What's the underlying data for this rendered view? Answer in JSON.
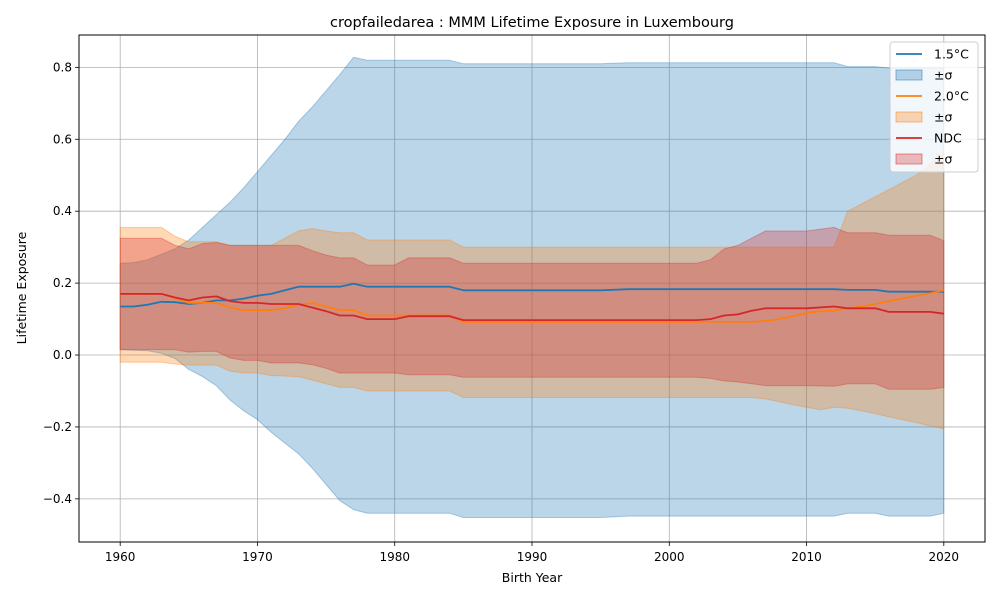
{
  "chart_data": {
    "type": "line",
    "title": "cropfailedarea : MMM Lifetime Exposure in Luxembourg",
    "xlabel": "Birth Year",
    "ylabel": "Lifetime Exposure",
    "xlim": [
      1957,
      2023
    ],
    "ylim": [
      -0.52,
      0.89
    ],
    "xticks": [
      1960,
      1970,
      1980,
      1990,
      2000,
      2010,
      2020
    ],
    "yticks": [
      -0.4,
      -0.2,
      0.0,
      0.2,
      0.4,
      0.6,
      0.8
    ],
    "xtick_labels": [
      "1960",
      "1970",
      "1980",
      "1990",
      "2000",
      "2010",
      "2020"
    ],
    "ytick_labels": [
      "−0.4",
      "−0.2",
      "0.0",
      "0.2",
      "0.4",
      "0.6",
      "0.8"
    ],
    "grid": true,
    "legend_position": "top-right",
    "series": [
      {
        "name": "1.5°C",
        "band_label": "±σ",
        "color": "#1f77b4",
        "band_color": "#1f77b4",
        "band_opacity": 0.3,
        "points": [
          [
            1960,
            0.135
          ],
          [
            1961,
            0.135
          ],
          [
            1962,
            0.14
          ],
          [
            1963,
            0.148
          ],
          [
            1964,
            0.147
          ],
          [
            1965,
            0.142
          ],
          [
            1966,
            0.145
          ],
          [
            1967,
            0.152
          ],
          [
            1968,
            0.152
          ],
          [
            1969,
            0.157
          ],
          [
            1970,
            0.165
          ],
          [
            1971,
            0.17
          ],
          [
            1972,
            0.18
          ],
          [
            1973,
            0.19
          ],
          [
            1976,
            0.19
          ],
          [
            1977,
            0.198
          ],
          [
            1978,
            0.19
          ],
          [
            1984,
            0.19
          ],
          [
            1985,
            0.18
          ],
          [
            1995,
            0.18
          ],
          [
            1997,
            0.183
          ],
          [
            2012,
            0.183
          ],
          [
            2013,
            0.181
          ],
          [
            2015,
            0.181
          ],
          [
            2016,
            0.176
          ],
          [
            2020,
            0.176
          ]
        ],
        "upper": [
          [
            1960,
            0.255
          ],
          [
            1961,
            0.257
          ],
          [
            1962,
            0.265
          ],
          [
            1963,
            0.28
          ],
          [
            1964,
            0.295
          ],
          [
            1965,
            0.32
          ],
          [
            1966,
            0.355
          ],
          [
            1967,
            0.39
          ],
          [
            1968,
            0.425
          ],
          [
            1969,
            0.465
          ],
          [
            1970,
            0.51
          ],
          [
            1971,
            0.555
          ],
          [
            1972,
            0.6
          ],
          [
            1973,
            0.65
          ],
          [
            1974,
            0.69
          ],
          [
            1975,
            0.735
          ],
          [
            1976,
            0.78
          ],
          [
            1977,
            0.828
          ],
          [
            1978,
            0.82
          ],
          [
            1984,
            0.82
          ],
          [
            1985,
            0.81
          ],
          [
            1995,
            0.81
          ],
          [
            1997,
            0.813
          ],
          [
            2012,
            0.813
          ],
          [
            2013,
            0.802
          ],
          [
            2015,
            0.802
          ],
          [
            2016,
            0.798
          ],
          [
            2020,
            0.798
          ]
        ],
        "lower": [
          [
            1960,
            0.015
          ],
          [
            1961,
            0.013
          ],
          [
            1962,
            0.012
          ],
          [
            1963,
            0.005
          ],
          [
            1964,
            -0.01
          ],
          [
            1965,
            -0.04
          ],
          [
            1966,
            -0.06
          ],
          [
            1967,
            -0.085
          ],
          [
            1968,
            -0.125
          ],
          [
            1969,
            -0.155
          ],
          [
            1970,
            -0.18
          ],
          [
            1971,
            -0.215
          ],
          [
            1972,
            -0.245
          ],
          [
            1973,
            -0.275
          ],
          [
            1974,
            -0.315
          ],
          [
            1975,
            -0.36
          ],
          [
            1976,
            -0.405
          ],
          [
            1977,
            -0.43
          ],
          [
            1978,
            -0.44
          ],
          [
            1984,
            -0.44
          ],
          [
            1985,
            -0.452
          ],
          [
            1995,
            -0.452
          ],
          [
            1997,
            -0.448
          ],
          [
            2012,
            -0.448
          ],
          [
            2013,
            -0.44
          ],
          [
            2015,
            -0.44
          ],
          [
            2016,
            -0.448
          ],
          [
            2019,
            -0.448
          ],
          [
            2020,
            -0.44
          ]
        ]
      },
      {
        "name": "2.0°C",
        "band_label": "±σ",
        "color": "#ff7f0e",
        "band_color": "#ff7f0e",
        "band_opacity": 0.3,
        "points": [
          [
            1960,
            0.17
          ],
          [
            1963,
            0.17
          ],
          [
            1964,
            0.158
          ],
          [
            1965,
            0.145
          ],
          [
            1967,
            0.145
          ],
          [
            1968,
            0.132
          ],
          [
            1969,
            0.125
          ],
          [
            1971,
            0.125
          ],
          [
            1972,
            0.13
          ],
          [
            1973,
            0.14
          ],
          [
            1974,
            0.145
          ],
          [
            1975,
            0.135
          ],
          [
            1976,
            0.125
          ],
          [
            1977,
            0.125
          ],
          [
            1978,
            0.11
          ],
          [
            1980,
            0.11
          ],
          [
            1981,
            0.11
          ],
          [
            1984,
            0.11
          ],
          [
            1985,
            0.092
          ],
          [
            2006,
            0.092
          ],
          [
            2007,
            0.095
          ],
          [
            2008,
            0.1
          ],
          [
            2009,
            0.108
          ],
          [
            2010,
            0.117
          ],
          [
            2011,
            0.122
          ],
          [
            2012,
            0.123
          ],
          [
            2013,
            0.13
          ],
          [
            2014,
            0.135
          ],
          [
            2015,
            0.142
          ],
          [
            2016,
            0.15
          ],
          [
            2017,
            0.157
          ],
          [
            2018,
            0.165
          ],
          [
            2019,
            0.172
          ],
          [
            2020,
            0.18
          ]
        ],
        "upper": [
          [
            1960,
            0.355
          ],
          [
            1963,
            0.355
          ],
          [
            1964,
            0.33
          ],
          [
            1965,
            0.315
          ],
          [
            1967,
            0.315
          ],
          [
            1968,
            0.305
          ],
          [
            1971,
            0.305
          ],
          [
            1972,
            0.325
          ],
          [
            1973,
            0.345
          ],
          [
            1974,
            0.352
          ],
          [
            1975,
            0.345
          ],
          [
            1976,
            0.34
          ],
          [
            1977,
            0.34
          ],
          [
            1978,
            0.32
          ],
          [
            1984,
            0.32
          ],
          [
            1985,
            0.3
          ],
          [
            2012,
            0.3
          ],
          [
            2013,
            0.4
          ],
          [
            2014,
            0.42
          ],
          [
            2015,
            0.44
          ],
          [
            2016,
            0.46
          ],
          [
            2017,
            0.48
          ],
          [
            2018,
            0.5
          ],
          [
            2019,
            0.53
          ],
          [
            2020,
            0.56
          ]
        ],
        "lower": [
          [
            1960,
            -0.02
          ],
          [
            1963,
            -0.02
          ],
          [
            1964,
            -0.025
          ],
          [
            1965,
            -0.028
          ],
          [
            1967,
            -0.028
          ],
          [
            1968,
            -0.045
          ],
          [
            1969,
            -0.05
          ],
          [
            1970,
            -0.05
          ],
          [
            1971,
            -0.057
          ],
          [
            1973,
            -0.06
          ],
          [
            1974,
            -0.07
          ],
          [
            1975,
            -0.08
          ],
          [
            1976,
            -0.09
          ],
          [
            1977,
            -0.09
          ],
          [
            1978,
            -0.1
          ],
          [
            1984,
            -0.1
          ],
          [
            1985,
            -0.118
          ],
          [
            2006,
            -0.118
          ],
          [
            2007,
            -0.122
          ],
          [
            2008,
            -0.13
          ],
          [
            2009,
            -0.138
          ],
          [
            2010,
            -0.145
          ],
          [
            2011,
            -0.152
          ],
          [
            2012,
            -0.145
          ],
          [
            2013,
            -0.148
          ],
          [
            2014,
            -0.155
          ],
          [
            2015,
            -0.163
          ],
          [
            2016,
            -0.172
          ],
          [
            2017,
            -0.18
          ],
          [
            2018,
            -0.188
          ],
          [
            2019,
            -0.197
          ],
          [
            2020,
            -0.205
          ]
        ]
      },
      {
        "name": "NDC",
        "band_label": "±σ",
        "color": "#d62728",
        "band_color": "#d62728",
        "band_opacity": 0.3,
        "points": [
          [
            1960,
            0.17
          ],
          [
            1963,
            0.17
          ],
          [
            1964,
            0.16
          ],
          [
            1965,
            0.152
          ],
          [
            1966,
            0.16
          ],
          [
            1967,
            0.163
          ],
          [
            1968,
            0.15
          ],
          [
            1969,
            0.145
          ],
          [
            1970,
            0.145
          ],
          [
            1971,
            0.142
          ],
          [
            1973,
            0.142
          ],
          [
            1974,
            0.132
          ],
          [
            1975,
            0.122
          ],
          [
            1976,
            0.11
          ],
          [
            1977,
            0.11
          ],
          [
            1978,
            0.1
          ],
          [
            1980,
            0.1
          ],
          [
            1981,
            0.108
          ],
          [
            1984,
            0.108
          ],
          [
            1985,
            0.097
          ],
          [
            2002,
            0.097
          ],
          [
            2003,
            0.1
          ],
          [
            2004,
            0.11
          ],
          [
            2005,
            0.113
          ],
          [
            2006,
            0.123
          ],
          [
            2007,
            0.13
          ],
          [
            2010,
            0.13
          ],
          [
            2012,
            0.135
          ],
          [
            2013,
            0.13
          ],
          [
            2015,
            0.13
          ],
          [
            2016,
            0.12
          ],
          [
            2019,
            0.12
          ],
          [
            2020,
            0.115
          ]
        ],
        "upper": [
          [
            1960,
            0.325
          ],
          [
            1963,
            0.325
          ],
          [
            1964,
            0.305
          ],
          [
            1965,
            0.295
          ],
          [
            1966,
            0.31
          ],
          [
            1967,
            0.313
          ],
          [
            1968,
            0.305
          ],
          [
            1973,
            0.305
          ],
          [
            1974,
            0.29
          ],
          [
            1975,
            0.278
          ],
          [
            1976,
            0.27
          ],
          [
            1977,
            0.27
          ],
          [
            1978,
            0.25
          ],
          [
            1980,
            0.25
          ],
          [
            1981,
            0.27
          ],
          [
            1984,
            0.27
          ],
          [
            1985,
            0.255
          ],
          [
            2002,
            0.255
          ],
          [
            2003,
            0.265
          ],
          [
            2004,
            0.295
          ],
          [
            2005,
            0.305
          ],
          [
            2006,
            0.325
          ],
          [
            2007,
            0.345
          ],
          [
            2010,
            0.345
          ],
          [
            2012,
            0.355
          ],
          [
            2013,
            0.34
          ],
          [
            2015,
            0.34
          ],
          [
            2016,
            0.333
          ],
          [
            2019,
            0.333
          ],
          [
            2020,
            0.318
          ]
        ],
        "lower": [
          [
            1960,
            0.015
          ],
          [
            1963,
            0.015
          ],
          [
            1964,
            0.015
          ],
          [
            1965,
            0.008
          ],
          [
            1966,
            0.01
          ],
          [
            1967,
            0.01
          ],
          [
            1968,
            -0.008
          ],
          [
            1969,
            -0.015
          ],
          [
            1970,
            -0.015
          ],
          [
            1971,
            -0.022
          ],
          [
            1973,
            -0.022
          ],
          [
            1974,
            -0.027
          ],
          [
            1975,
            -0.037
          ],
          [
            1976,
            -0.05
          ],
          [
            1977,
            -0.05
          ],
          [
            1978,
            -0.05
          ],
          [
            1980,
            -0.05
          ],
          [
            1981,
            -0.055
          ],
          [
            1984,
            -0.055
          ],
          [
            1985,
            -0.062
          ],
          [
            2002,
            -0.062
          ],
          [
            2003,
            -0.065
          ],
          [
            2004,
            -0.072
          ],
          [
            2005,
            -0.075
          ],
          [
            2006,
            -0.08
          ],
          [
            2007,
            -0.085
          ],
          [
            2010,
            -0.085
          ],
          [
            2012,
            -0.087
          ],
          [
            2013,
            -0.08
          ],
          [
            2015,
            -0.08
          ],
          [
            2016,
            -0.095
          ],
          [
            2019,
            -0.095
          ],
          [
            2020,
            -0.09
          ]
        ]
      }
    ]
  }
}
